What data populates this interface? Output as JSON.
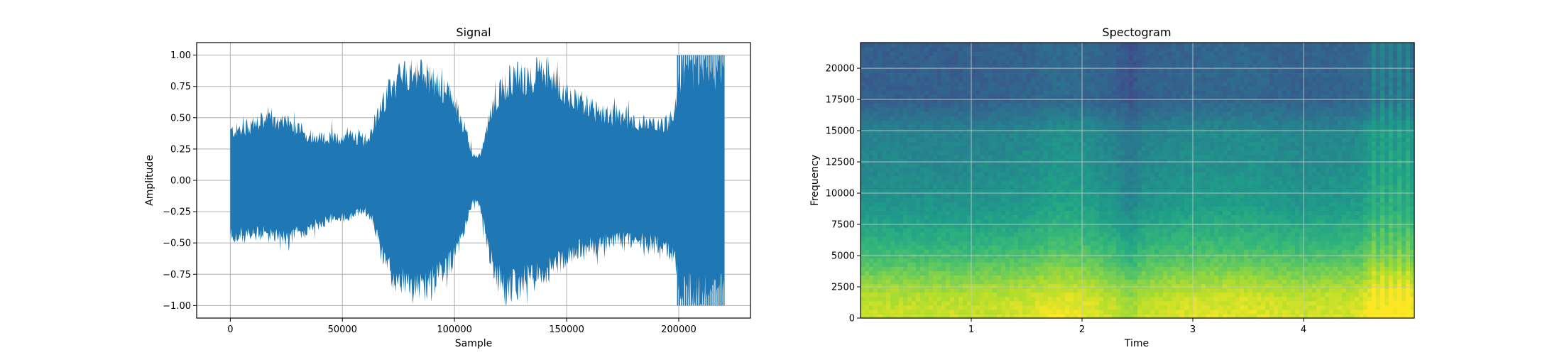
{
  "chart_data": [
    {
      "type": "line",
      "title": "Signal",
      "xlabel": "Sample",
      "ylabel": "Amplitude",
      "xlim": [
        -15000,
        232000
      ],
      "ylim": [
        -1.1,
        1.1
      ],
      "grid": true,
      "color": "#1f77b4",
      "x_ticks": [
        0,
        50000,
        100000,
        150000,
        200000
      ],
      "x_tick_labels": [
        "0",
        "50000",
        "100000",
        "150000",
        "200000"
      ],
      "y_ticks": [
        1.0,
        0.75,
        0.5,
        0.25,
        0.0,
        -0.25,
        -0.5,
        -0.75,
        -1.0
      ],
      "y_tick_labels": [
        "1.00",
        "0.75",
        "0.50",
        "0.25",
        "0.00",
        "−0.25",
        "−0.50",
        "−0.75",
        "−1.00"
      ],
      "envelope": {
        "x": [
          0,
          5000,
          15000,
          25000,
          35000,
          45000,
          55000,
          60000,
          63000,
          66000,
          70000,
          75000,
          80000,
          85000,
          90000,
          95000,
          100000,
          104000,
          107000,
          109000,
          111000,
          113000,
          115000,
          118000,
          122000,
          127000,
          132000,
          137000,
          142000,
          147000,
          152000,
          158000,
          165000,
          172000,
          180000,
          188000,
          195000,
          199000,
          201000,
          203000,
          206000,
          210000,
          215000,
          220500
        ],
        "upper": [
          0.45,
          0.48,
          0.55,
          0.52,
          0.42,
          0.38,
          0.4,
          0.36,
          0.45,
          0.65,
          0.78,
          0.95,
          1.0,
          1.0,
          0.92,
          0.85,
          0.72,
          0.52,
          0.32,
          0.2,
          0.22,
          0.35,
          0.55,
          0.75,
          0.85,
          0.97,
          0.92,
          1.0,
          0.98,
          0.88,
          0.78,
          0.7,
          0.62,
          0.58,
          0.55,
          0.5,
          0.53,
          0.7,
          1.0,
          1.0,
          1.0,
          1.0,
          1.0,
          1.0
        ],
        "lower": [
          -0.5,
          -0.52,
          -0.5,
          -0.55,
          -0.45,
          -0.35,
          -0.33,
          -0.28,
          -0.35,
          -0.55,
          -0.8,
          -0.95,
          -1.0,
          -1.0,
          -0.95,
          -0.85,
          -0.7,
          -0.5,
          -0.25,
          -0.18,
          -0.22,
          -0.4,
          -0.65,
          -0.85,
          -1.0,
          -0.98,
          -0.92,
          -0.9,
          -0.85,
          -0.75,
          -0.68,
          -0.62,
          -0.6,
          -0.56,
          -0.55,
          -0.58,
          -0.62,
          -0.72,
          -1.0,
          -1.0,
          -1.0,
          -1.0,
          -1.0,
          -1.0
        ]
      }
    },
    {
      "type": "heatmap",
      "title": "Spectogram",
      "xlabel": "Time",
      "ylabel": "Frequency",
      "xlim": [
        0,
        5.0
      ],
      "ylim": [
        0,
        22050
      ],
      "grid": true,
      "colormap": "viridis",
      "x_ticks": [
        1,
        2,
        3,
        4
      ],
      "x_tick_labels": [
        "1",
        "2",
        "3",
        "4"
      ],
      "y_ticks": [
        0,
        2500,
        5000,
        7500,
        10000,
        12500,
        15000,
        17500,
        20000
      ],
      "y_tick_labels": [
        "0",
        "2500",
        "5000",
        "7500",
        "10000",
        "12500",
        "15000",
        "17500",
        "20000"
      ],
      "frequency_profile": {
        "freq": [
          0,
          1500,
          3000,
          4500,
          6000,
          7500,
          9000,
          12000,
          15000,
          16000,
          17500,
          19000,
          22050
        ],
        "level": [
          0.92,
          0.9,
          0.82,
          0.72,
          0.64,
          0.58,
          0.52,
          0.47,
          0.44,
          0.38,
          0.3,
          0.3,
          0.3
        ]
      },
      "time_profile": {
        "time": [
          0,
          0.5,
          1.0,
          1.5,
          1.7,
          1.8,
          2.0,
          2.3,
          2.45,
          2.55,
          3.0,
          3.5,
          4.0,
          4.5,
          4.6,
          5.0
        ],
        "gain": [
          0.0,
          0.0,
          0.0,
          0.02,
          0.05,
          0.06,
          0.05,
          0.0,
          -0.06,
          0.0,
          0.03,
          0.04,
          0.01,
          0.03,
          0.08,
          0.08
        ]
      }
    }
  ]
}
